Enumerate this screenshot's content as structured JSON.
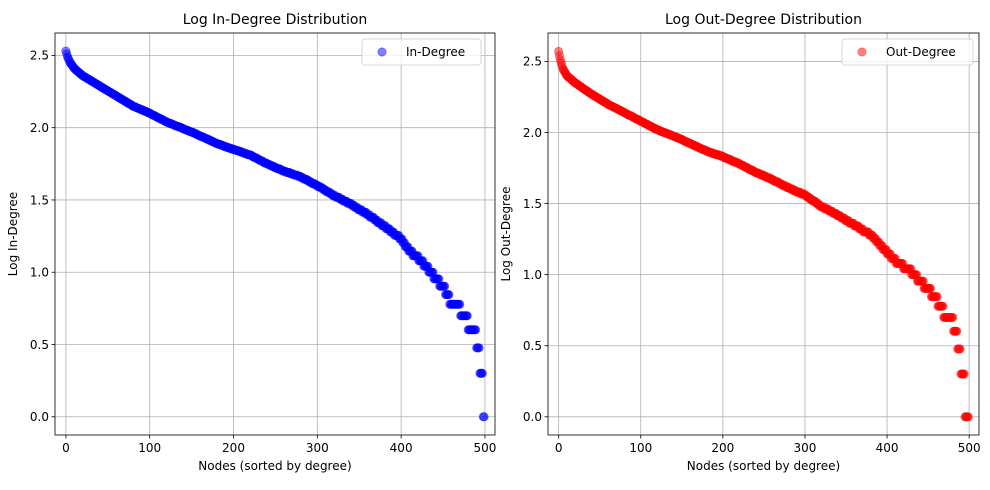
{
  "chart_data": [
    {
      "type": "scatter",
      "title": "Log In-Degree Distribution",
      "xlabel": "Nodes (sorted by degree)",
      "ylabel": "Log In-Degree",
      "xlim": [
        -13,
        512
      ],
      "ylim": [
        -0.126,
        2.655
      ],
      "xticks": [
        0,
        100,
        200,
        300,
        400,
        500
      ],
      "yticks": [
        0.0,
        0.5,
        1.0,
        1.5,
        2.0,
        2.5
      ],
      "xtick_labels": [
        "0",
        "100",
        "200",
        "300",
        "400",
        "500"
      ],
      "ytick_labels": [
        "0.0",
        "0.5",
        "1.0",
        "1.5",
        "2.0",
        "2.5"
      ],
      "grid": true,
      "legend_position": "top-right",
      "series": [
        {
          "name": "In-Degree",
          "color": "#0000ff",
          "alpha": 0.5,
          "n_points": 500,
          "profile": [
            [
              0,
              2.53
            ],
            [
              2,
              2.49
            ],
            [
              5,
              2.45
            ],
            [
              10,
              2.41
            ],
            [
              20,
              2.36
            ],
            [
              40,
              2.29
            ],
            [
              60,
              2.22
            ],
            [
              80,
              2.15
            ],
            [
              100,
              2.1
            ],
            [
              120,
              2.04
            ],
            [
              150,
              1.97
            ],
            [
              180,
              1.89
            ],
            [
              200,
              1.85
            ],
            [
              220,
              1.81
            ],
            [
              240,
              1.75
            ],
            [
              260,
              1.7
            ],
            [
              280,
              1.66
            ],
            [
              300,
              1.6
            ],
            [
              320,
              1.53
            ],
            [
              340,
              1.47
            ],
            [
              360,
              1.4
            ],
            [
              380,
              1.32
            ],
            [
              400,
              1.23
            ],
            [
              410,
              1.15
            ],
            [
              420,
              1.1
            ],
            [
              430,
              1.04
            ],
            [
              440,
              0.97
            ],
            [
              450,
              0.9
            ],
            [
              460,
              0.78
            ],
            [
              470,
              0.75
            ],
            [
              480,
              0.65
            ],
            [
              488,
              0.6
            ],
            [
              492,
              0.48
            ],
            [
              496,
              0.3
            ],
            [
              499,
              0.0
            ]
          ]
        }
      ]
    },
    {
      "type": "scatter",
      "title": "Log Out-Degree Distribution",
      "xlabel": "Nodes (sorted by degree)",
      "ylabel": "Log Out-Degree",
      "xlim": [
        -13,
        512
      ],
      "ylim": [
        -0.128,
        2.7
      ],
      "xticks": [
        0,
        100,
        200,
        300,
        400,
        500
      ],
      "yticks": [
        0.0,
        0.5,
        1.0,
        1.5,
        2.0,
        2.5
      ],
      "xtick_labels": [
        "0",
        "100",
        "200",
        "300",
        "400",
        "500"
      ],
      "ytick_labels": [
        "0.0",
        "0.5",
        "1.0",
        "1.5",
        "2.0",
        "2.5"
      ],
      "grid": true,
      "legend_position": "top-right",
      "series": [
        {
          "name": "Out-Degree",
          "color": "#ff0000",
          "alpha": 0.5,
          "n_points": 500,
          "profile": [
            [
              0,
              2.57
            ],
            [
              2,
              2.51
            ],
            [
              5,
              2.45
            ],
            [
              10,
              2.4
            ],
            [
              20,
              2.35
            ],
            [
              40,
              2.27
            ],
            [
              60,
              2.2
            ],
            [
              80,
              2.14
            ],
            [
              100,
              2.08
            ],
            [
              120,
              2.02
            ],
            [
              150,
              1.95
            ],
            [
              180,
              1.87
            ],
            [
              200,
              1.83
            ],
            [
              220,
              1.78
            ],
            [
              240,
              1.72
            ],
            [
              260,
              1.67
            ],
            [
              280,
              1.61
            ],
            [
              300,
              1.56
            ],
            [
              320,
              1.48
            ],
            [
              340,
              1.42
            ],
            [
              360,
              1.35
            ],
            [
              380,
              1.28
            ],
            [
              400,
              1.16
            ],
            [
              410,
              1.1
            ],
            [
              420,
              1.06
            ],
            [
              430,
              1.02
            ],
            [
              440,
              0.95
            ],
            [
              450,
              0.9
            ],
            [
              460,
              0.83
            ],
            [
              470,
              0.72
            ],
            [
              480,
              0.66
            ],
            [
              484,
              0.6
            ],
            [
              488,
              0.47
            ],
            [
              492,
              0.3
            ],
            [
              497,
              0.0
            ]
          ]
        }
      ]
    }
  ]
}
